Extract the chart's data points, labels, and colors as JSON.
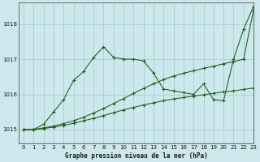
{
  "title": "Graphe pression niveau de la mer (hPa)",
  "bg_color": "#cce8ec",
  "grid_color": "#aacccc",
  "line_color": "#1a5c1a",
  "xlim": [
    -0.5,
    23
  ],
  "ylim": [
    1014.6,
    1018.6
  ],
  "yticks": [
    1015,
    1016,
    1017,
    1018
  ],
  "xticks": [
    0,
    1,
    2,
    3,
    4,
    5,
    6,
    7,
    8,
    9,
    10,
    11,
    12,
    13,
    14,
    15,
    16,
    17,
    18,
    19,
    20,
    21,
    22,
    23
  ],
  "line1_x": [
    0,
    1,
    2,
    3,
    4,
    5,
    6,
    7,
    8,
    9,
    10,
    11,
    12,
    13,
    14,
    15,
    16,
    17,
    18,
    19,
    20,
    21,
    22,
    23
  ],
  "line1_y": [
    1015.0,
    1015.0,
    1015.03,
    1015.07,
    1015.12,
    1015.18,
    1015.25,
    1015.32,
    1015.4,
    1015.48,
    1015.56,
    1015.63,
    1015.7,
    1015.76,
    1015.82,
    1015.87,
    1015.91,
    1015.95,
    1015.99,
    1016.03,
    1016.07,
    1016.1,
    1016.14,
    1016.18
  ],
  "line2_x": [
    0,
    1,
    2,
    3,
    4,
    5,
    6,
    7,
    8,
    9,
    10,
    11,
    12,
    13,
    14,
    15,
    16,
    17,
    18,
    19,
    20,
    21,
    22,
    23
  ],
  "line2_y": [
    1015.0,
    1015.0,
    1015.05,
    1015.1,
    1015.17,
    1015.25,
    1015.35,
    1015.47,
    1015.6,
    1015.74,
    1015.88,
    1016.03,
    1016.17,
    1016.3,
    1016.42,
    1016.52,
    1016.6,
    1016.67,
    1016.74,
    1016.8,
    1016.87,
    1016.93,
    1017.0,
    1018.4
  ],
  "line3_x": [
    0,
    1,
    2,
    3,
    4,
    5,
    6,
    7,
    8,
    9,
    10,
    11,
    12,
    13,
    14,
    15,
    16,
    17,
    18,
    19,
    20,
    21,
    22,
    23
  ],
  "line3_y": [
    1015.0,
    1015.0,
    1015.15,
    1015.5,
    1015.85,
    1016.4,
    1016.65,
    1017.05,
    1017.35,
    1017.05,
    1017.0,
    1017.0,
    1016.95,
    1016.6,
    1016.15,
    1016.1,
    1016.05,
    1016.0,
    1016.3,
    1015.85,
    1015.82,
    1017.0,
    1017.85,
    1018.5
  ]
}
